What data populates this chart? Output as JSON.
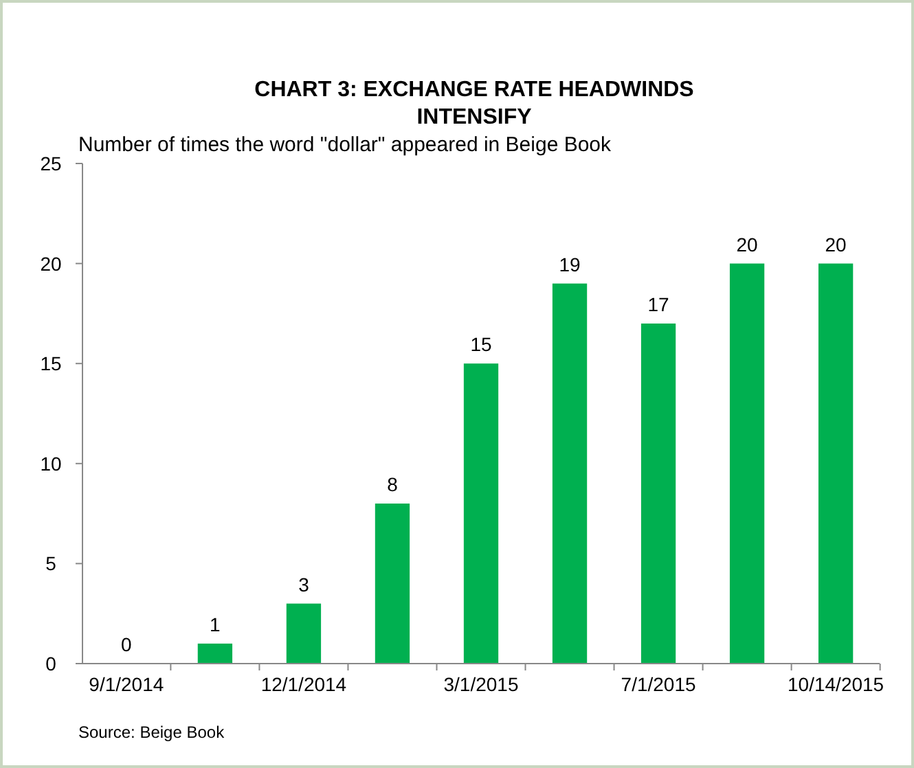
{
  "chart_data": {
    "type": "bar",
    "title": "CHART 3: EXCHANGE RATE HEADWINDS INTENSIFY",
    "ylabel": "Number of times the word \"dollar\" appeared in Beige Book",
    "categories": [
      "9/1/2014",
      null,
      "12/1/2014",
      null,
      "3/1/2015",
      null,
      "7/1/2015",
      null,
      "10/14/2015"
    ],
    "values": [
      0,
      1,
      3,
      8,
      15,
      19,
      17,
      20,
      20
    ],
    "color": "#00b050",
    "ylim": [
      0,
      25
    ],
    "yticks": [
      0,
      5,
      10,
      15,
      20,
      25
    ],
    "data_labels": true,
    "grid": false,
    "annotations": [
      "Source:  Beige Book"
    ]
  }
}
